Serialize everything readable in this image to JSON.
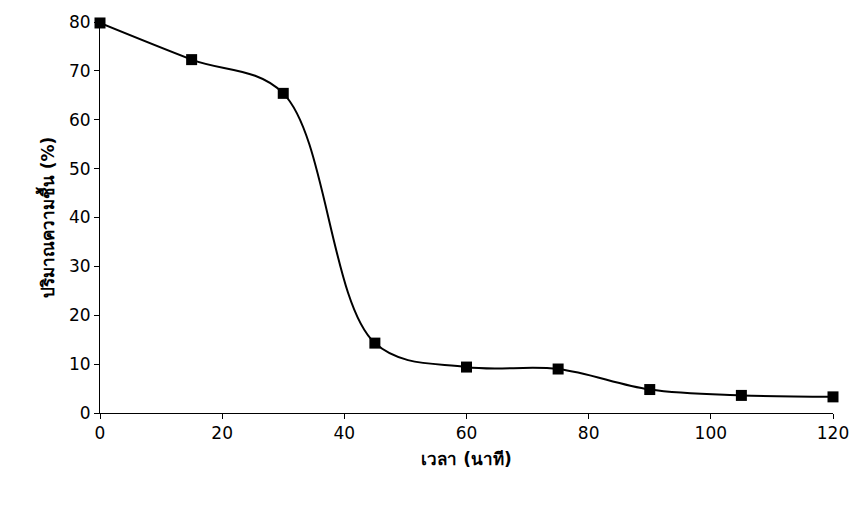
{
  "chart_data": {
    "type": "line",
    "x_label": "เวลา (นาที)",
    "y_label": "ปริมาณความชื้น (%)",
    "x": [
      0,
      15,
      30,
      45,
      60,
      75,
      90,
      105,
      120
    ],
    "values": [
      79.8,
      72.3,
      65.4,
      14.3,
      9.4,
      9.0,
      4.8,
      3.6,
      3.3
    ],
    "color": "#000000",
    "marker": "square",
    "line_style": "smooth",
    "xlim": [
      0,
      120
    ],
    "xticks": [
      0,
      20,
      40,
      60,
      80,
      100,
      120
    ],
    "ylim": [
      0,
      80
    ],
    "yticks": [
      0,
      10,
      20,
      30,
      40,
      50,
      60,
      70,
      80
    ],
    "grid": false
  }
}
